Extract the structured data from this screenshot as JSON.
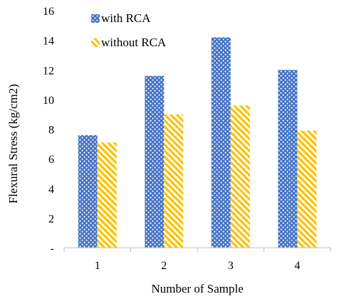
{
  "chart_data": {
    "type": "bar",
    "categories": [
      "1",
      "2",
      "3",
      "4"
    ],
    "series": [
      {
        "name": "with RCA",
        "values": [
          7.6,
          11.6,
          14.2,
          12.0
        ],
        "color": "#4472C4",
        "pattern": "white-dots"
      },
      {
        "name": "without RCA",
        "values": [
          7.1,
          9.0,
          9.6,
          7.9
        ],
        "color": "#FFC000",
        "pattern": "diagonal-stripes"
      }
    ],
    "title": "",
    "xlabel": "Number of Sample",
    "ylabel": "Flexural Stress (kg/cm2)",
    "ylim": [
      0,
      16
    ],
    "yticks": [
      0,
      2,
      4,
      6,
      8,
      10,
      12,
      14,
      16
    ],
    "ytick_labels": [
      "-",
      "2",
      "4",
      "6",
      "8",
      "10",
      "12",
      "14",
      "16"
    ],
    "grid": false,
    "legend_position": "top-left"
  }
}
